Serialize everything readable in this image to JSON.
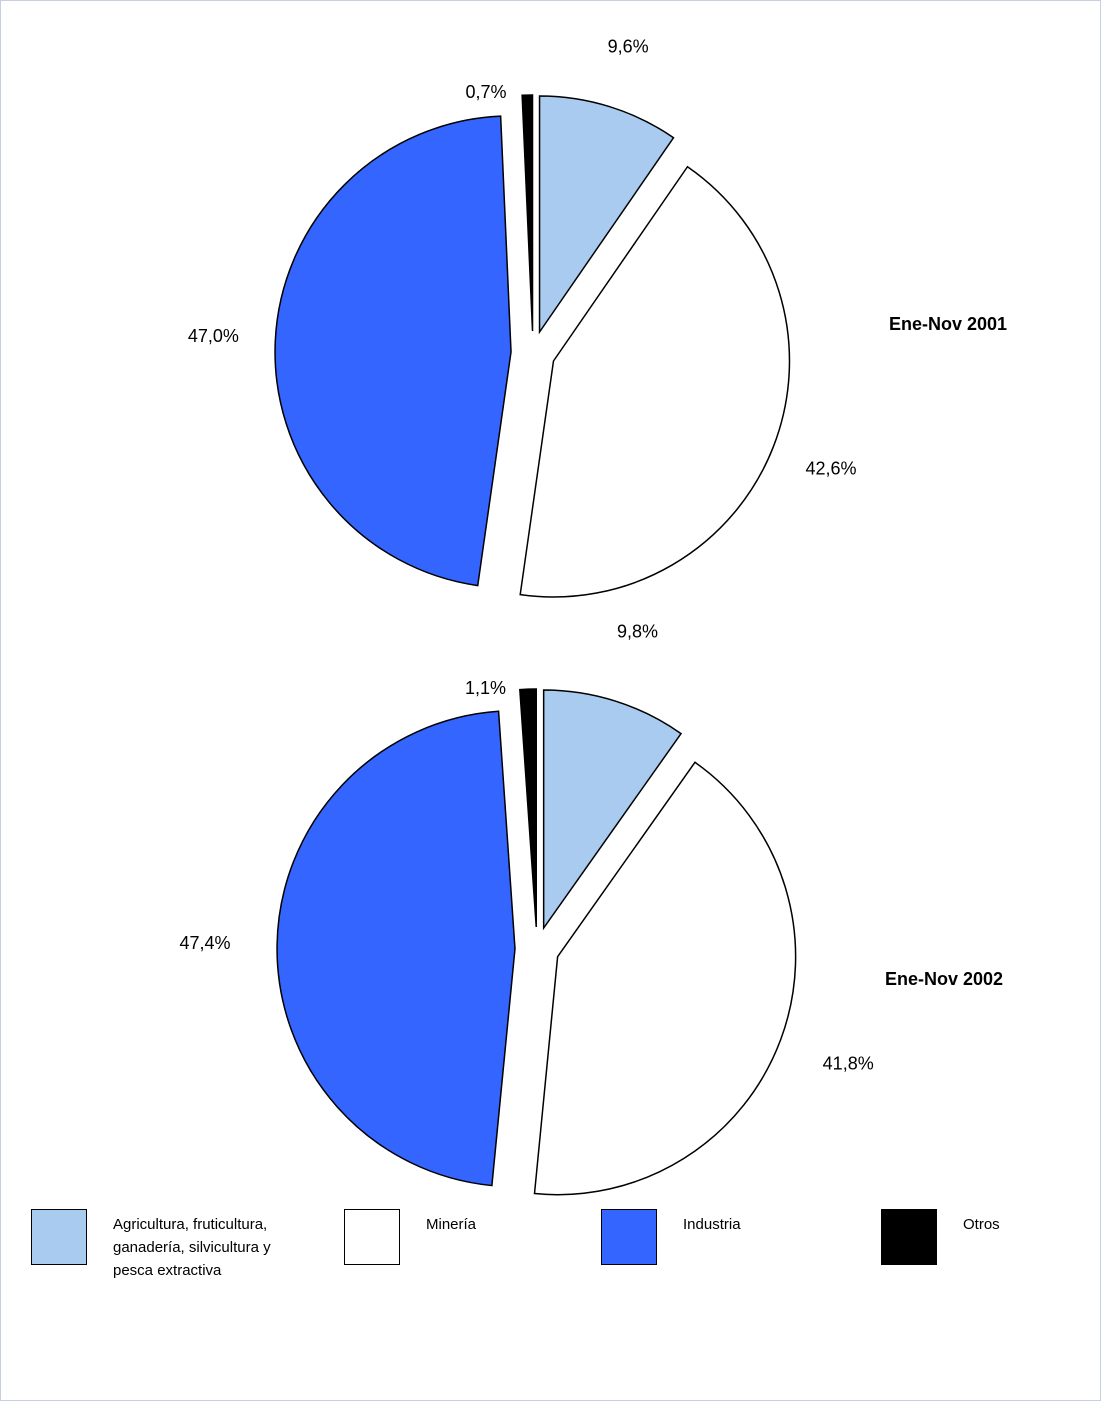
{
  "chart_data": [
    {
      "type": "pie",
      "title": "Ene-Nov 2001",
      "exploded": true,
      "slices": [
        {
          "label": "Agricultura, fruticultura, ganadería, silvicultura y pesca extractiva",
          "value": 9.6,
          "value_label": "9,6%",
          "color": "#a9cbf0"
        },
        {
          "label": "Minería",
          "value": 42.6,
          "value_label": "42,6%",
          "color": "#ffffff"
        },
        {
          "label": "Industria",
          "value": 47.0,
          "value_label": "47,0%",
          "color": "#3466ff"
        },
        {
          "label": "Otros",
          "value": 0.7,
          "value_label": "0,7%",
          "color": "#000000"
        }
      ]
    },
    {
      "type": "pie",
      "title": "Ene-Nov 2002",
      "exploded": true,
      "slices": [
        {
          "label": "Agricultura, fruticultura, ganadería, silvicultura y pesca extractiva",
          "value": 9.8,
          "value_label": "9,8%",
          "color": "#a9cbf0"
        },
        {
          "label": "Minería",
          "value": 41.8,
          "value_label": "41,8%",
          "color": "#ffffff"
        },
        {
          "label": "Industria",
          "value": 47.4,
          "value_label": "47,4%",
          "color": "#3466ff"
        },
        {
          "label": "Otros",
          "value": 1.1,
          "value_label": "1,1%",
          "color": "#000000"
        }
      ]
    }
  ],
  "legend": {
    "placement": "bottom",
    "items": [
      {
        "label": "Agricultura, fruticultura, ganadería, silvicultura y pesca extractiva",
        "color": "#a9cbf0"
      },
      {
        "label": "Minería",
        "color": "#ffffff"
      },
      {
        "label": "Industria",
        "color": "#3466ff"
      },
      {
        "label": "Otros",
        "color": "#000000"
      }
    ]
  }
}
